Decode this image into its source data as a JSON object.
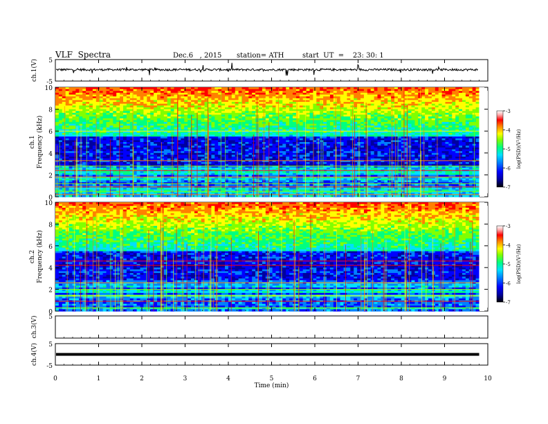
{
  "header": {
    "title": "VLF  Spectra",
    "date": "Dec.6   , 2015",
    "station": "station= ATH",
    "start": "start  UT  =    23: 30: 1"
  },
  "chart_data": [
    {
      "type": "line",
      "panel": "ch1",
      "ylabel": "ch.1(V)",
      "ylim": [
        -5,
        5
      ],
      "y_ticks": [
        "5",
        "-5"
      ],
      "description": "waveform amplitude, baseline near +0.3 V with small spikes",
      "baseline": 0.3,
      "color": "#000000"
    },
    {
      "type": "heatmap",
      "panel": "ch1-spectrogram",
      "ylabel": "Frequency  (kHz)",
      "channel_label": "ch.1",
      "ylim": [
        0,
        10
      ],
      "y_ticks": [
        "0",
        "2",
        "4",
        "6",
        "8",
        "10"
      ],
      "colorbar": {
        "label": "log(PSD)(V²/Hz)",
        "range": [
          -7,
          -3
        ],
        "ticks": [
          "-3",
          "-4",
          "-5",
          "-6",
          "-7"
        ]
      }
    },
    {
      "type": "heatmap",
      "panel": "ch2-spectrogram",
      "ylabel": "Frequency  (kHz)",
      "channel_label": "ch.2",
      "ylim": [
        0,
        10
      ],
      "y_ticks": [
        "0",
        "2",
        "4",
        "6",
        "8",
        "10"
      ],
      "colorbar": {
        "label": "log(PSD)(V²/Hz)",
        "range": [
          -7,
          -3
        ],
        "ticks": [
          "-3",
          "-4",
          "-5",
          "-6",
          "-7"
        ]
      }
    },
    {
      "type": "line",
      "panel": "ch3",
      "ylabel": "ch.3(V)",
      "ylim": [
        -5,
        5
      ],
      "y_ticks": [
        "5"
      ],
      "description": "empty channel",
      "color": "#000000"
    },
    {
      "type": "line",
      "panel": "ch4",
      "ylabel": "ch.4(V)",
      "ylim": [
        -5,
        5
      ],
      "y_ticks": [
        "5",
        "-5"
      ],
      "baseline": 0.0,
      "description": "flat thick line near 0 V",
      "color": "#000000"
    }
  ],
  "x_axis": {
    "label": "Time  (min)",
    "range": [
      0,
      10
    ],
    "ticks": [
      "0",
      "1",
      "2",
      "3",
      "4",
      "5",
      "6",
      "7",
      "8",
      "9",
      "10"
    ],
    "data_end": 9.8
  },
  "colors": {
    "colormap": [
      "#000000",
      "#0000a0",
      "#0000ff",
      "#0080ff",
      "#00e0ff",
      "#00ff80",
      "#80ff00",
      "#ffff00",
      "#ff8000",
      "#ff0000",
      "#ffb0b0",
      "#ffffff"
    ]
  }
}
